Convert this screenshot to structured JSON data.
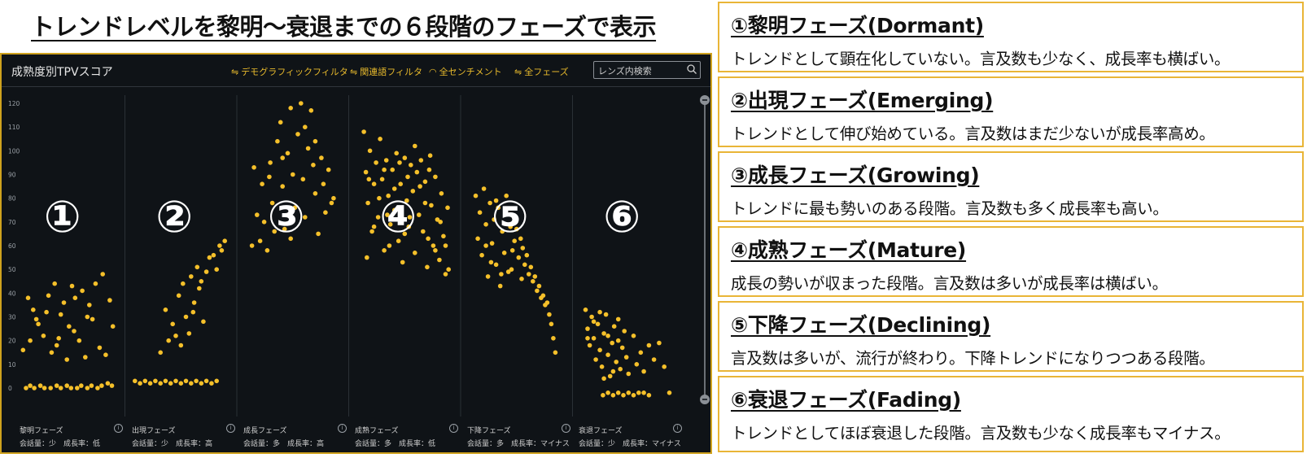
{
  "main_title": "トレンドレベルを黎明～衰退までの６段階のフェーズで表示",
  "dashboard": {
    "title": "成熟度別TPVスコア",
    "filters": [
      {
        "label": "デモグラフィックフィルタ",
        "icon": "filter-icon"
      },
      {
        "label": "関連語フィルタ",
        "icon": "filter-icon"
      },
      {
        "label": "全センチメント",
        "icon": "sentiment-icon"
      },
      {
        "label": "全フェーズ",
        "icon": "filter-icon"
      }
    ],
    "search": {
      "placeholder": "レンズ内検索",
      "value": ""
    }
  },
  "phase_footers": [
    {
      "name": "黎明フェーズ",
      "desc": "会話量：少　成長率：低"
    },
    {
      "name": "出現フェーズ",
      "desc": "会話量：少　成長率：高"
    },
    {
      "name": "成長フェーズ",
      "desc": "会話量：多　成長率：高"
    },
    {
      "name": "成熟フェーズ",
      "desc": "会話量：多　成長率：低"
    },
    {
      "name": "下降フェーズ",
      "desc": "会話量：多　成長率：マイナス"
    },
    {
      "name": "衰退フェーズ",
      "desc": "会話量：少　成長率：マイナス"
    }
  ],
  "phase_markers": [
    "①",
    "②",
    "③",
    "④",
    "⑤",
    "⑥"
  ],
  "phase_boxes": [
    {
      "heading": "①黎明フェーズ(Dormant)",
      "text": "トレンドとして顕在化していない。言及数も少なく、成長率も横ばい。"
    },
    {
      "heading": "②出現フェーズ(Emerging)",
      "text": "トレンドとして伸び始めている。言及数はまだ少ないが成長率高め。"
    },
    {
      "heading": "③成長フェーズ(Growing)",
      "text": "トレンドに最も勢いのある段階。言及数も多く成長率も高い。"
    },
    {
      "heading": "④成熟フェーズ(Mature)",
      "text": "成長の勢いが収まった段階。言及数は多いが成長率は横ばい。"
    },
    {
      "heading": "⑤下降フェーズ(Declining)",
      "text": "言及数は多いが、流行が終わり。下降トレンドになりつつある段階。"
    },
    {
      "heading": "⑥衰退フェーズ(Fading)",
      "text": "トレンドとしてほぼ衰退した段階。言及数も少なく成長率もマイナス。"
    }
  ],
  "colors": {
    "point": "#f5c02a",
    "background": "#0f1317",
    "accent": "#e7b92c",
    "box_border": "#e9b537"
  },
  "chart_data": {
    "type": "scatter",
    "title": "成熟度別TPVスコア",
    "ylim": [
      0,
      120
    ],
    "y_ticks": [
      "0",
      "10",
      "20",
      "30",
      "40",
      "50",
      "60",
      "70",
      "80",
      "90",
      "100",
      "110",
      "120"
    ],
    "grid": false,
    "series": [
      {
        "name": "黎明フェーズ",
        "points": [
          [
            0.08,
            0
          ],
          [
            0.12,
            1
          ],
          [
            0.16,
            0
          ],
          [
            0.22,
            1
          ],
          [
            0.26,
            0
          ],
          [
            0.32,
            0
          ],
          [
            0.38,
            1
          ],
          [
            0.42,
            0
          ],
          [
            0.48,
            1
          ],
          [
            0.52,
            0
          ],
          [
            0.58,
            0
          ],
          [
            0.62,
            1
          ],
          [
            0.68,
            0
          ],
          [
            0.72,
            1
          ],
          [
            0.78,
            0
          ],
          [
            0.82,
            1
          ],
          [
            0.88,
            2
          ],
          [
            0.92,
            1
          ],
          [
            0.05,
            16
          ],
          [
            0.1,
            38
          ],
          [
            0.15,
            33
          ],
          [
            0.2,
            27
          ],
          [
            0.25,
            22
          ],
          [
            0.3,
            39
          ],
          [
            0.33,
            15
          ],
          [
            0.36,
            44
          ],
          [
            0.4,
            21
          ],
          [
            0.42,
            31
          ],
          [
            0.45,
            36
          ],
          [
            0.48,
            12
          ],
          [
            0.5,
            26
          ],
          [
            0.53,
            43
          ],
          [
            0.56,
            38
          ],
          [
            0.6,
            20
          ],
          [
            0.63,
            41
          ],
          [
            0.66,
            13
          ],
          [
            0.7,
            35
          ],
          [
            0.73,
            29
          ],
          [
            0.76,
            44
          ],
          [
            0.8,
            17
          ],
          [
            0.83,
            48
          ],
          [
            0.86,
            14
          ],
          [
            0.9,
            37
          ],
          [
            0.93,
            26
          ],
          [
            0.12,
            20
          ],
          [
            0.18,
            29
          ],
          [
            0.28,
            32
          ],
          [
            0.38,
            18
          ],
          [
            0.55,
            24
          ],
          [
            0.68,
            30
          ]
        ]
      },
      {
        "name": "出現フェーズ",
        "points": [
          [
            0.05,
            3
          ],
          [
            0.1,
            2
          ],
          [
            0.15,
            3
          ],
          [
            0.2,
            2
          ],
          [
            0.25,
            3
          ],
          [
            0.3,
            2
          ],
          [
            0.35,
            3
          ],
          [
            0.4,
            2
          ],
          [
            0.45,
            3
          ],
          [
            0.5,
            2
          ],
          [
            0.55,
            3
          ],
          [
            0.6,
            2
          ],
          [
            0.65,
            3
          ],
          [
            0.7,
            2
          ],
          [
            0.75,
            3
          ],
          [
            0.8,
            2
          ],
          [
            0.85,
            3
          ],
          [
            0.3,
            15
          ],
          [
            0.35,
            33
          ],
          [
            0.38,
            20
          ],
          [
            0.42,
            27
          ],
          [
            0.45,
            22
          ],
          [
            0.48,
            39
          ],
          [
            0.5,
            18
          ],
          [
            0.52,
            44
          ],
          [
            0.55,
            30
          ],
          [
            0.58,
            23
          ],
          [
            0.6,
            47
          ],
          [
            0.63,
            36
          ],
          [
            0.66,
            51
          ],
          [
            0.68,
            42
          ],
          [
            0.72,
            28
          ],
          [
            0.75,
            49
          ],
          [
            0.78,
            55
          ],
          [
            0.82,
            56
          ],
          [
            0.85,
            50
          ],
          [
            0.88,
            60
          ],
          [
            0.9,
            58
          ],
          [
            0.93,
            62
          ],
          [
            0.62,
            32
          ],
          [
            0.7,
            45
          ]
        ]
      },
      {
        "name": "成長フェーズ",
        "points": [
          [
            0.1,
            60
          ],
          [
            0.12,
            93
          ],
          [
            0.15,
            73
          ],
          [
            0.18,
            62
          ],
          [
            0.2,
            86
          ],
          [
            0.22,
            70
          ],
          [
            0.25,
            58
          ],
          [
            0.28,
            95
          ],
          [
            0.3,
            78
          ],
          [
            0.32,
            66
          ],
          [
            0.35,
            104
          ],
          [
            0.38,
            112
          ],
          [
            0.4,
            85
          ],
          [
            0.42,
            67
          ],
          [
            0.45,
            99
          ],
          [
            0.48,
            118
          ],
          [
            0.5,
            90
          ],
          [
            0.52,
            76
          ],
          [
            0.55,
            107
          ],
          [
            0.58,
            120
          ],
          [
            0.6,
            88
          ],
          [
            0.62,
            72
          ],
          [
            0.65,
            101
          ],
          [
            0.68,
            117
          ],
          [
            0.7,
            94
          ],
          [
            0.72,
            82
          ],
          [
            0.75,
            65
          ],
          [
            0.78,
            97
          ],
          [
            0.8,
            86
          ],
          [
            0.82,
            74
          ],
          [
            0.85,
            92
          ],
          [
            0.88,
            78
          ],
          [
            0.9,
            80
          ],
          [
            0.27,
            89
          ],
          [
            0.4,
            97
          ],
          [
            0.62,
            110
          ],
          [
            0.72,
            104
          ],
          [
            0.48,
            63
          ]
        ]
      },
      {
        "name": "成熟フェーズ",
        "points": [
          [
            0.1,
            108
          ],
          [
            0.12,
            91
          ],
          [
            0.14,
            78
          ],
          [
            0.16,
            100
          ],
          [
            0.18,
            66
          ],
          [
            0.2,
            86
          ],
          [
            0.22,
            95
          ],
          [
            0.24,
            72
          ],
          [
            0.26,
            105
          ],
          [
            0.28,
            88
          ],
          [
            0.3,
            58
          ],
          [
            0.32,
            96
          ],
          [
            0.34,
            81
          ],
          [
            0.36,
            69
          ],
          [
            0.38,
            92
          ],
          [
            0.4,
            75
          ],
          [
            0.42,
            99
          ],
          [
            0.44,
            62
          ],
          [
            0.46,
            86
          ],
          [
            0.48,
            53
          ],
          [
            0.5,
            97
          ],
          [
            0.52,
            79
          ],
          [
            0.54,
            68
          ],
          [
            0.56,
            94
          ],
          [
            0.58,
            83
          ],
          [
            0.6,
            57
          ],
          [
            0.62,
            91
          ],
          [
            0.64,
            73
          ],
          [
            0.66,
            96
          ],
          [
            0.68,
            66
          ],
          [
            0.7,
            87
          ],
          [
            0.72,
            51
          ],
          [
            0.74,
            92
          ],
          [
            0.76,
            77
          ],
          [
            0.78,
            60
          ],
          [
            0.8,
            89
          ],
          [
            0.82,
            71
          ],
          [
            0.84,
            54
          ],
          [
            0.86,
            82
          ],
          [
            0.88,
            64
          ],
          [
            0.9,
            48
          ],
          [
            0.92,
            76
          ],
          [
            0.15,
            88
          ],
          [
            0.25,
            80
          ],
          [
            0.35,
            60
          ],
          [
            0.45,
            95
          ],
          [
            0.55,
            72
          ],
          [
            0.65,
            85
          ],
          [
            0.75,
            98
          ],
          [
            0.85,
            70
          ],
          [
            0.2,
            68
          ],
          [
            0.3,
            92
          ],
          [
            0.4,
            84
          ],
          [
            0.5,
            65
          ],
          [
            0.6,
            102
          ],
          [
            0.7,
            78
          ],
          [
            0.8,
            58
          ],
          [
            0.9,
            60
          ],
          [
            0.13,
            55
          ],
          [
            0.33,
            73
          ],
          [
            0.53,
            89
          ],
          [
            0.73,
            63
          ],
          [
            0.93,
            50
          ]
        ]
      },
      {
        "name": "下降フェーズ",
        "points": [
          [
            0.1,
            81
          ],
          [
            0.12,
            63
          ],
          [
            0.14,
            74
          ],
          [
            0.16,
            56
          ],
          [
            0.18,
            84
          ],
          [
            0.2,
            69
          ],
          [
            0.22,
            47
          ],
          [
            0.24,
            78
          ],
          [
            0.26,
            61
          ],
          [
            0.28,
            71
          ],
          [
            0.3,
            52
          ],
          [
            0.32,
            76
          ],
          [
            0.34,
            43
          ],
          [
            0.36,
            66
          ],
          [
            0.38,
            57
          ],
          [
            0.4,
            81
          ],
          [
            0.42,
            49
          ],
          [
            0.44,
            68
          ],
          [
            0.46,
            58
          ],
          [
            0.48,
            62
          ],
          [
            0.5,
            67
          ],
          [
            0.52,
            55
          ],
          [
            0.54,
            63
          ],
          [
            0.56,
            59
          ],
          [
            0.58,
            52
          ],
          [
            0.6,
            56
          ],
          [
            0.62,
            48
          ],
          [
            0.64,
            51
          ],
          [
            0.66,
            45
          ],
          [
            0.68,
            47
          ],
          [
            0.7,
            41
          ],
          [
            0.72,
            43
          ],
          [
            0.74,
            38
          ],
          [
            0.76,
            39
          ],
          [
            0.78,
            35
          ],
          [
            0.8,
            36
          ],
          [
            0.82,
            31
          ],
          [
            0.84,
            27
          ],
          [
            0.86,
            21
          ],
          [
            0.88,
            15
          ],
          [
            0.3,
            79
          ],
          [
            0.2,
            60
          ],
          [
            0.25,
            53
          ],
          [
            0.35,
            48
          ],
          [
            0.45,
            50
          ],
          [
            0.55,
            46
          ]
        ]
      },
      {
        "name": "衰退フェーズ",
        "points": [
          [
            0.08,
            33
          ],
          [
            0.1,
            25
          ],
          [
            0.12,
            18
          ],
          [
            0.14,
            30
          ],
          [
            0.16,
            21
          ],
          [
            0.18,
            12
          ],
          [
            0.2,
            27
          ],
          [
            0.22,
            16
          ],
          [
            0.24,
            9
          ],
          [
            0.26,
            23
          ],
          [
            0.28,
            31
          ],
          [
            0.3,
            14
          ],
          [
            0.32,
            5
          ],
          [
            0.34,
            19
          ],
          [
            0.36,
            26
          ],
          [
            0.38,
            11
          ],
          [
            0.4,
            20
          ],
          [
            0.42,
            8
          ],
          [
            0.44,
            17
          ],
          [
            0.46,
            24
          ],
          [
            0.48,
            13
          ],
          [
            0.5,
            6
          ],
          [
            0.55,
            22
          ],
          [
            0.58,
            10
          ],
          [
            0.62,
            15
          ],
          [
            0.65,
            7
          ],
          [
            0.7,
            18
          ],
          [
            0.75,
            12
          ],
          [
            0.8,
            19
          ],
          [
            0.85,
            9
          ],
          [
            0.1,
            21
          ],
          [
            0.16,
            28
          ],
          [
            0.22,
            32
          ],
          [
            0.3,
            22
          ],
          [
            0.4,
            29
          ],
          [
            0.25,
            -3
          ],
          [
            0.3,
            -2
          ],
          [
            0.35,
            -3
          ],
          [
            0.4,
            -2
          ],
          [
            0.45,
            -3
          ],
          [
            0.5,
            -2
          ],
          [
            0.55,
            -3
          ],
          [
            0.6,
            -2
          ],
          [
            0.65,
            -2
          ],
          [
            0.7,
            -3
          ],
          [
            0.9,
            -2
          ],
          [
            0.35,
            7
          ],
          [
            0.26,
            4
          ]
        ]
      }
    ]
  }
}
